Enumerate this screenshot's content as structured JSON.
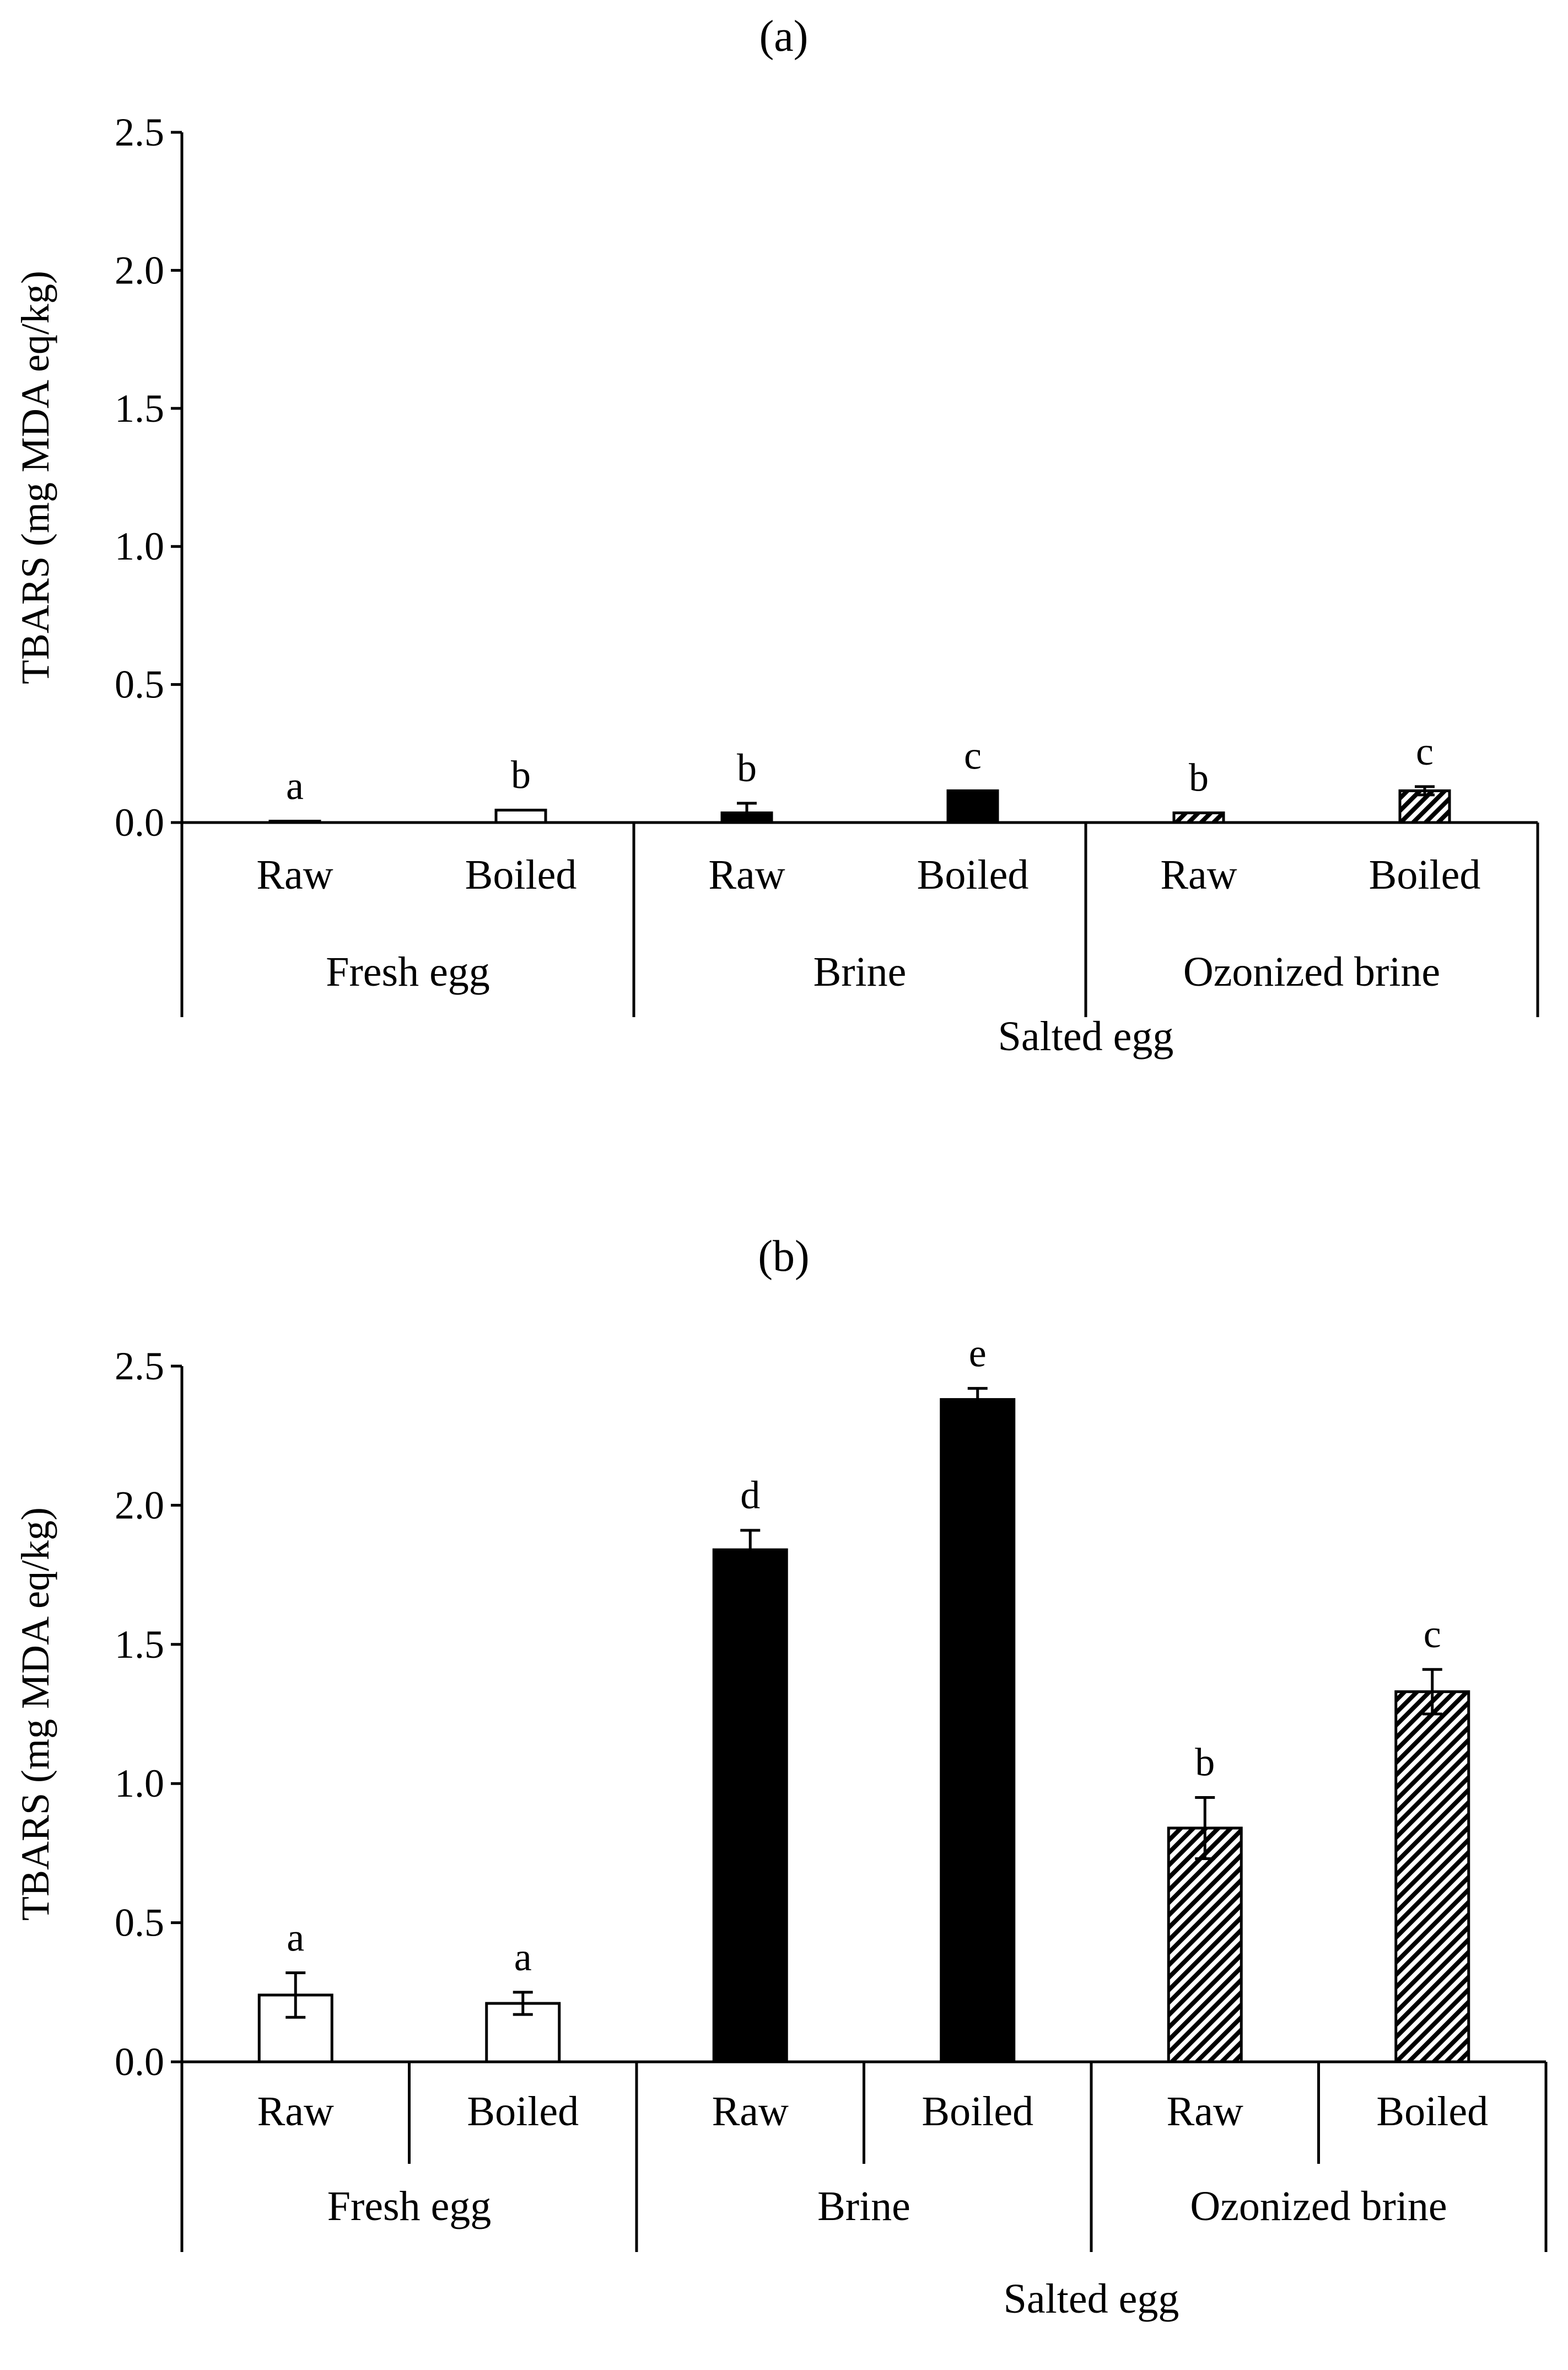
{
  "chart_data": [
    {
      "type": "bar",
      "title": "(a)",
      "ylabel": "TBARS (mg MDA eq/kg)",
      "xlabel": "Salted egg",
      "ylim": [
        0,
        2.5
      ],
      "yticks": [
        "0.0",
        "0.5",
        "1.0",
        "1.5",
        "2.0",
        "2.5"
      ],
      "ytick_values": [
        0,
        0.5,
        1.0,
        1.5,
        2.0,
        2.5
      ],
      "groups": [
        "Fresh egg",
        "Brine",
        "Ozonized brine"
      ],
      "categories": [
        "Raw",
        "Boiled",
        "Raw",
        "Boiled",
        "Raw",
        "Boiled"
      ],
      "values": [
        0.005,
        0.045,
        0.035,
        0.115,
        0.035,
        0.115
      ],
      "errors": [
        0.0,
        0.0,
        0.035,
        0.0,
        0.0,
        0.015
      ],
      "letters": [
        "a",
        "b",
        "b",
        "c",
        "b",
        "c"
      ],
      "fills": [
        "white",
        "white",
        "black",
        "black",
        "hatch",
        "hatch"
      ],
      "subgroup_dividers": false
    },
    {
      "type": "bar",
      "title": "(b)",
      "ylabel": "TBARS (mg MDA eq/kg)",
      "xlabel": "Salted egg",
      "ylim": [
        0,
        2.5
      ],
      "yticks": [
        "0.0",
        "0.5",
        "1.0",
        "1.5",
        "2.0",
        "2.5"
      ],
      "ytick_values": [
        0,
        0.5,
        1.0,
        1.5,
        2.0,
        2.5
      ],
      "groups": [
        "Fresh egg",
        "Brine",
        "Ozonized brine"
      ],
      "categories": [
        "Raw",
        "Boiled",
        "Raw",
        "Boiled",
        "Raw",
        "Boiled"
      ],
      "values": [
        0.24,
        0.21,
        1.84,
        2.38,
        0.84,
        1.33
      ],
      "errors": [
        0.08,
        0.04,
        0.07,
        0.04,
        0.11,
        0.08
      ],
      "letters": [
        "a",
        "a",
        "d",
        "e",
        "b",
        "c"
      ],
      "fills": [
        "white",
        "white",
        "black",
        "black",
        "hatch",
        "hatch"
      ],
      "subgroup_dividers": true
    }
  ],
  "colors": {
    "axis": "#000000",
    "dark": "#000000",
    "light": "#ffffff"
  }
}
